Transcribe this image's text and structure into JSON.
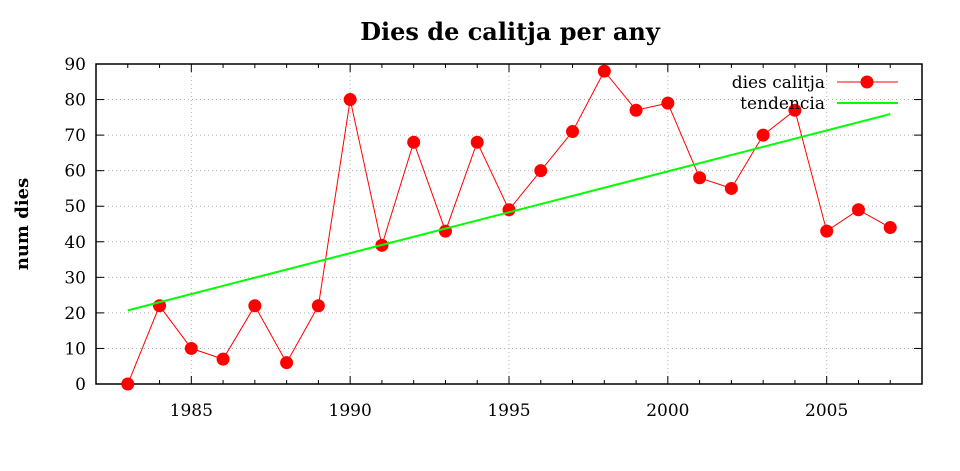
{
  "chart_data": {
    "type": "line",
    "title": "Dies de calitja per any",
    "xlabel": "",
    "ylabel": "num dies",
    "xlim": [
      1982,
      2008
    ],
    "ylim": [
      0,
      90
    ],
    "xticks": [
      1985,
      1990,
      1995,
      2000,
      2005
    ],
    "yticks": [
      0,
      10,
      20,
      30,
      40,
      50,
      60,
      70,
      80,
      90
    ],
    "grid": true,
    "legend_position": "top-right",
    "series": [
      {
        "name": "dies calitja",
        "color": "#ff0000",
        "marker": "circle",
        "x": [
          1983,
          1984,
          1985,
          1986,
          1987,
          1988,
          1989,
          1990,
          1991,
          1992,
          1993,
          1994,
          1995,
          1996,
          1997,
          1998,
          1999,
          2000,
          2001,
          2002,
          2003,
          2004,
          2005,
          2006,
          2007
        ],
        "y": [
          0,
          22,
          10,
          7,
          22,
          6,
          22,
          80,
          39,
          68,
          43,
          68,
          49,
          60,
          71,
          88,
          77,
          79,
          58,
          55,
          70,
          77,
          43,
          49,
          44
        ]
      },
      {
        "name": "tendencia",
        "color": "#00ff00",
        "marker": "none",
        "x": [
          1983,
          2007
        ],
        "y": [
          20.7,
          75.9
        ]
      }
    ]
  }
}
